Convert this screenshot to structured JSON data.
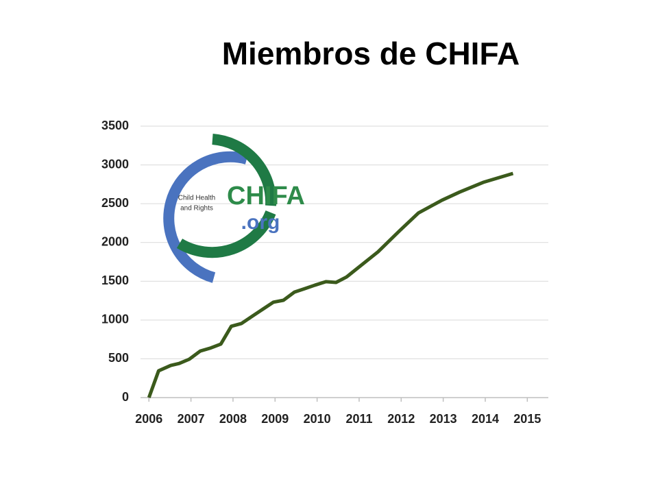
{
  "chart_data": {
    "type": "line",
    "title": "Miembros de CHIFA",
    "x": [
      2006,
      2006.23,
      2006.52,
      2006.72,
      2006.96,
      2007.22,
      2007.47,
      2007.71,
      2007.96,
      2008.2,
      2008.46,
      2008.71,
      2008.96,
      2009.2,
      2009.46,
      2009.71,
      2009.95,
      2010.21,
      2010.45,
      2010.7,
      2011.45,
      2011.96,
      2012.41,
      2012.97,
      2013.39,
      2013.95,
      2014.66
    ],
    "series": [
      {
        "color": "#3b5a1c",
        "values": [
          0,
          345,
          415,
          440,
          495,
          600,
          640,
          690,
          920,
          955,
          1050,
          1140,
          1230,
          1255,
          1360,
          1405,
          1450,
          1495,
          1485,
          1555,
          1880,
          2150,
          2380,
          2545,
          2650,
          2775,
          2890
        ]
      }
    ],
    "xlim": [
      2005.8,
      2015.5
    ],
    "xticks": [
      2006,
      2007,
      2008,
      2009,
      2010,
      2011,
      2012,
      2013,
      2014,
      2015
    ],
    "ylim": [
      0,
      3500
    ],
    "yticks": [
      0,
      500,
      1000,
      1500,
      2000,
      2500,
      3000,
      3500
    ],
    "grid": true
  },
  "logo": {
    "tagline_1": "Child Health",
    "tagline_2": "and Rights",
    "name": "CHIFA",
    "domain": ".org"
  }
}
